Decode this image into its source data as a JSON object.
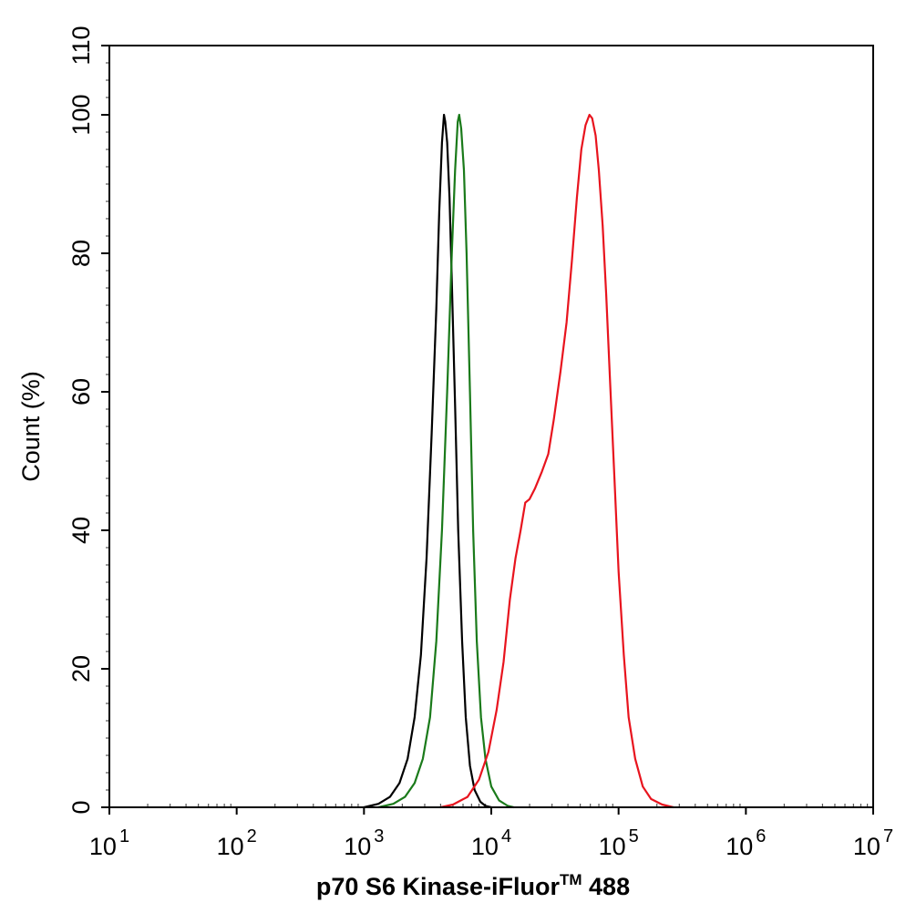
{
  "chart_data": {
    "type": "line",
    "xscale": "log",
    "xlim": [
      10,
      10000000
    ],
    "ylim": [
      0,
      110
    ],
    "xlabel_main": "p70 S6 Kinase-iFluor",
    "xlabel_sup": "TM",
    "xlabel_end": " 488",
    "ylabel": "Count  (%)",
    "x_ticks": [
      {
        "base": "10",
        "exp": "1",
        "value": 10
      },
      {
        "base": "10",
        "exp": "2",
        "value": 100
      },
      {
        "base": "10",
        "exp": "3",
        "value": 1000
      },
      {
        "base": "10",
        "exp": "4",
        "value": 10000
      },
      {
        "base": "10",
        "exp": "5",
        "value": 100000
      },
      {
        "base": "10",
        "exp": "6",
        "value": 1000000
      },
      {
        "base": "10",
        "exp": "7",
        "value": 10000000
      }
    ],
    "y_ticks": [
      "0",
      "20",
      "40",
      "60",
      "80",
      "100",
      "110"
    ],
    "grid": false,
    "series": [
      {
        "color": "#000000",
        "points": [
          [
            1000,
            0
          ],
          [
            1300,
            0.5
          ],
          [
            1600,
            1.5
          ],
          [
            1900,
            3.5
          ],
          [
            2200,
            7
          ],
          [
            2500,
            13
          ],
          [
            2800,
            22
          ],
          [
            3100,
            36
          ],
          [
            3400,
            54
          ],
          [
            3700,
            72
          ],
          [
            3900,
            86
          ],
          [
            4100,
            96
          ],
          [
            4250,
            100
          ],
          [
            4350,
            99
          ],
          [
            4500,
            96
          ],
          [
            4700,
            88
          ],
          [
            4900,
            76
          ],
          [
            5200,
            58
          ],
          [
            5500,
            40
          ],
          [
            5900,
            24
          ],
          [
            6300,
            13
          ],
          [
            6800,
            6
          ],
          [
            7400,
            2.5
          ],
          [
            8200,
            0.8
          ],
          [
            9000,
            0.2
          ],
          [
            10000,
            0
          ]
        ]
      },
      {
        "color": "#1a7a1a",
        "points": [
          [
            1300,
            0
          ],
          [
            1700,
            0.5
          ],
          [
            2100,
            1.5
          ],
          [
            2500,
            3.5
          ],
          [
            2900,
            7
          ],
          [
            3300,
            13
          ],
          [
            3700,
            24
          ],
          [
            4100,
            40
          ],
          [
            4500,
            60
          ],
          [
            4900,
            80
          ],
          [
            5200,
            92
          ],
          [
            5450,
            99
          ],
          [
            5600,
            100
          ],
          [
            5800,
            98
          ],
          [
            6100,
            92
          ],
          [
            6400,
            80
          ],
          [
            6800,
            60
          ],
          [
            7200,
            40
          ],
          [
            7700,
            24
          ],
          [
            8300,
            13
          ],
          [
            9000,
            7
          ],
          [
            10000,
            3
          ],
          [
            11500,
            1
          ],
          [
            13500,
            0.2
          ],
          [
            15000,
            0
          ]
        ]
      },
      {
        "color": "#e8141e",
        "points": [
          [
            4000,
            0
          ],
          [
            5000,
            0.4
          ],
          [
            6500,
            1.5
          ],
          [
            8000,
            4
          ],
          [
            9500,
            8
          ],
          [
            11000,
            14
          ],
          [
            12500,
            21
          ],
          [
            14000,
            30
          ],
          [
            15500,
            36
          ],
          [
            17000,
            40
          ],
          [
            18500,
            44
          ],
          [
            20000,
            44.5
          ],
          [
            22000,
            46
          ],
          [
            25000,
            48.5
          ],
          [
            28000,
            51
          ],
          [
            31000,
            56
          ],
          [
            35000,
            63
          ],
          [
            39000,
            70
          ],
          [
            43000,
            79
          ],
          [
            47000,
            88
          ],
          [
            51000,
            95
          ],
          [
            55000,
            98.5
          ],
          [
            59000,
            100
          ],
          [
            62000,
            99.5
          ],
          [
            66000,
            97
          ],
          [
            70000,
            92
          ],
          [
            75000,
            84
          ],
          [
            80000,
            74
          ],
          [
            86000,
            61
          ],
          [
            93000,
            47
          ],
          [
            100000,
            34
          ],
          [
            110000,
            22
          ],
          [
            120000,
            13
          ],
          [
            135000,
            7
          ],
          [
            155000,
            3
          ],
          [
            180000,
            1.2
          ],
          [
            220000,
            0.4
          ],
          [
            270000,
            0
          ]
        ]
      }
    ]
  }
}
